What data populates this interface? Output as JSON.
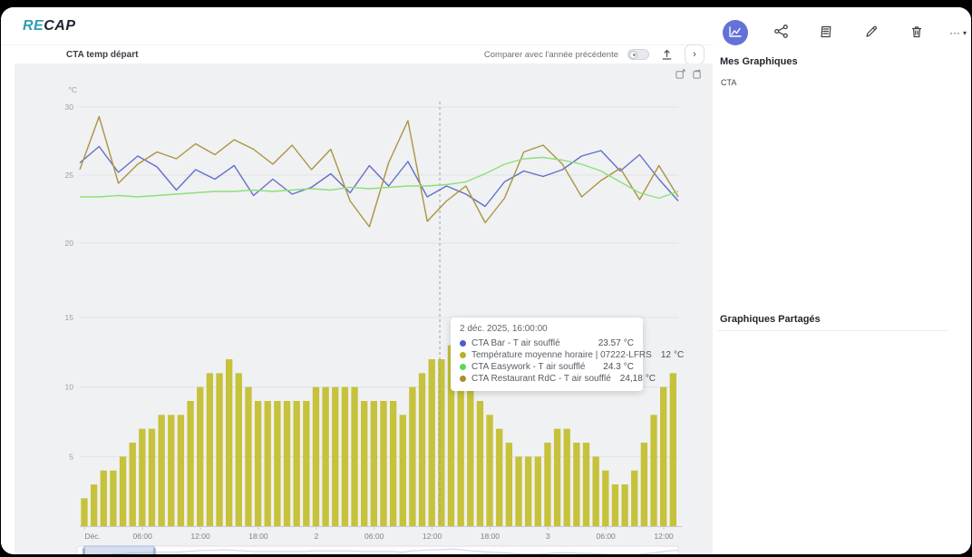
{
  "app": {
    "logo_re": "RE",
    "logo_cap": "CAP"
  },
  "toolbar": {
    "chart_title": "CTA temp départ",
    "compare_label": "Comparer avec l'année précédente",
    "toggle_state": "off",
    "export_icon": "export-up-arrow-icon",
    "collapse_glyph": "›"
  },
  "toolbox_icons": [
    "data-zoom-icon",
    "restore-icon"
  ],
  "sidebar": {
    "icons": [
      "chart-icon",
      "share-icon",
      "clipboard-list-icon",
      "pencil-icon",
      "trash-icon",
      "more-options-icon"
    ],
    "more_glyph": "···",
    "caret_glyph": "▾",
    "my_charts_heading": "Mes Graphiques",
    "items": [
      {
        "label": "CTA"
      }
    ],
    "shared_heading": "Graphiques Partagés"
  },
  "tooltip": {
    "timestamp": "2 déc. 2025, 16:00:00",
    "rows": [
      {
        "name": "CTA Bar - T air soufflé",
        "value": "23.57",
        "unit": "°C",
        "color": "#4d5ecb"
      },
      {
        "name": "Température moyenne horaire | 07222-LFRS",
        "value": "12",
        "unit": "°C",
        "color": "#b9b02c"
      },
      {
        "name": "CTA Easywork - T air soufflé",
        "value": "24.3",
        "unit": "°C",
        "color": "#59d859"
      },
      {
        "name": "CTA Restaurant RdC - T air soufflé",
        "value": "24,18",
        "unit": "°C",
        "color": "#a8902c"
      }
    ]
  },
  "colors": {
    "accent_blue": "#6472d8",
    "line_blue": "#626fca",
    "line_olive": "#ab9440",
    "line_green": "#8ce078",
    "bar_yellow": "#c6c23b",
    "grid": "#dfe2e6",
    "axis_text": "#9aa0a6"
  },
  "chart_data": {
    "type": "line+bar",
    "title": "CTA temp départ",
    "x_is_time": true,
    "xticks": [
      "Déc.",
      "06:00",
      "12:00",
      "18:00",
      "2",
      "06:00",
      "12:00",
      "18:00",
      "3",
      "06:00",
      "12:00"
    ],
    "pointer_hour_index": 37.3,
    "top_chart": {
      "type": "line",
      "unit": "°C",
      "yticks": [
        30,
        25,
        20
      ],
      "ylim": [
        20,
        30
      ],
      "series": [
        {
          "name": "CTA Bar - T air soufflé",
          "color": "#626fca",
          "values": [
            25.9,
            27.1,
            25.2,
            26.4,
            25.6,
            23.9,
            25.4,
            24.7,
            25.7,
            23.5,
            24.7,
            23.6,
            24.1,
            25.1,
            23.7,
            25.7,
            24.2,
            26.0,
            23.4,
            24.2,
            23.6,
            22.7,
            24.5,
            25.3,
            24.9,
            25.4,
            26.4,
            26.8,
            25.3,
            26.5,
            24.7,
            23.1
          ]
        },
        {
          "name": "CTA Restaurant RdC - T air soufflé",
          "color": "#ab9440",
          "values": [
            25.4,
            29.3,
            24.4,
            25.8,
            26.7,
            26.2,
            27.3,
            26.5,
            27.6,
            26.9,
            25.8,
            27.2,
            25.4,
            26.9,
            23.1,
            21.2,
            25.9,
            29.0,
            21.6,
            23.1,
            24.2,
            21.5,
            23.3,
            26.7,
            27.2,
            25.8,
            23.4,
            24.6,
            25.5,
            23.2,
            25.7,
            23.4
          ]
        },
        {
          "name": "CTA Easywork - T air soufflé",
          "color": "#8ce078",
          "values": [
            23.4,
            23.4,
            23.5,
            23.4,
            23.5,
            23.6,
            23.7,
            23.8,
            23.8,
            23.9,
            23.8,
            23.9,
            24.0,
            23.9,
            24.1,
            24.0,
            24.1,
            24.2,
            24.2,
            24.3,
            24.5,
            25.1,
            25.8,
            26.2,
            26.3,
            26.1,
            25.8,
            25.3,
            24.5,
            23.7,
            23.3,
            23.8
          ]
        }
      ]
    },
    "bottom_chart": {
      "type": "bar",
      "name": "Température moyenne horaire | 07222-LFRS",
      "color": "#c6c23b",
      "unit": "°C",
      "yticks": [
        15,
        10,
        5
      ],
      "ylim": [
        0,
        15
      ],
      "values": [
        2,
        3,
        4,
        4,
        5,
        6,
        7,
        7,
        8,
        8,
        8,
        9,
        10,
        11,
        11,
        12,
        11,
        10,
        9,
        9,
        9,
        9,
        9,
        9,
        10,
        10,
        10,
        10,
        10,
        9,
        9,
        9,
        9,
        8,
        10,
        11,
        12,
        12,
        13,
        12,
        10,
        9,
        8,
        7,
        6,
        5,
        5,
        5,
        6,
        7,
        7,
        6,
        6,
        5,
        4,
        3,
        3,
        4,
        6,
        8,
        10,
        11
      ]
    },
    "datazoom": {
      "start_fraction": 0.012,
      "end_fraction": 0.128
    }
  }
}
